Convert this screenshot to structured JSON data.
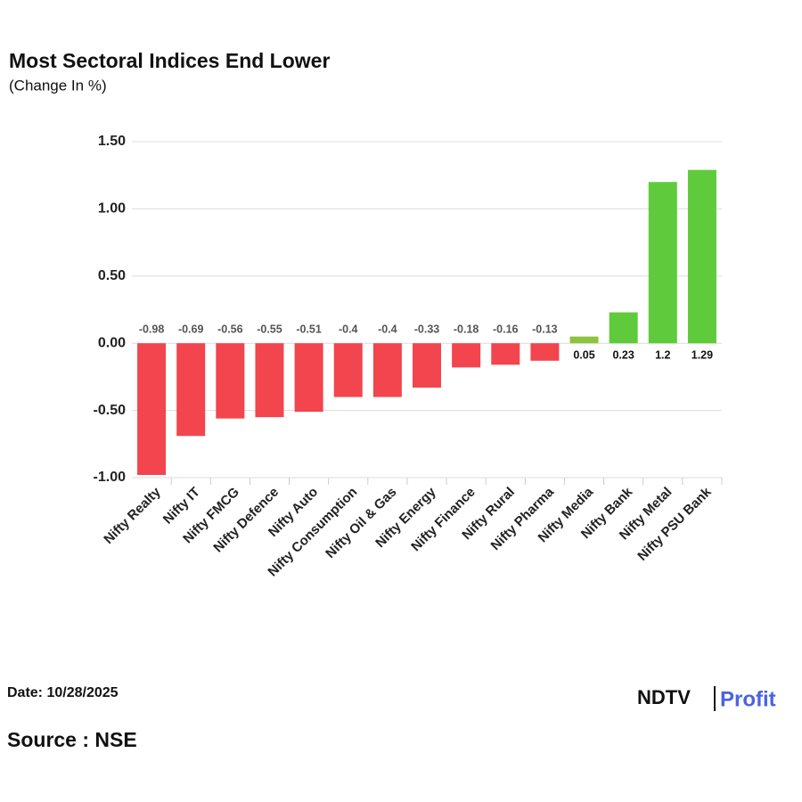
{
  "chart_data": {
    "type": "bar",
    "title": "Most Sectoral Indices End Lower",
    "subtitle": "(Change In %)",
    "categories": [
      "Nifty Realty",
      "Nifty IT",
      "Nifty FMCG",
      "Nifty Defence",
      "Nifty Auto",
      "Nifty Consumption",
      "Nifty Oil & Gas",
      "Nifty Energy",
      "Nifty Finance",
      "Nifty Rural",
      "Nifty Pharma",
      "Nifty Media",
      "Nifty Bank",
      "Nifty Metal",
      "Nifty PSU Bank"
    ],
    "values": [
      -0.98,
      -0.69,
      -0.56,
      -0.55,
      -0.51,
      -0.4,
      -0.4,
      -0.33,
      -0.18,
      -0.16,
      -0.13,
      0.05,
      0.23,
      1.2,
      1.29
    ],
    "colors": [
      "#f2454d",
      "#f2454d",
      "#f2454d",
      "#f2454d",
      "#f2454d",
      "#f2454d",
      "#f2454d",
      "#f2454d",
      "#f2454d",
      "#f2454d",
      "#f2454d",
      "#8cc43f",
      "#5fcb3c",
      "#5fcb3c",
      "#5fcb3c"
    ],
    "ylim": [
      -1,
      1.5
    ],
    "yticks": [
      {
        "value": -1,
        "label": "-1.00"
      },
      {
        "value": -0.5,
        "label": "-0.50"
      },
      {
        "value": 0,
        "label": "0.00"
      },
      {
        "value": 0.5,
        "label": "0.50"
      },
      {
        "value": 1,
        "label": "1.00"
      },
      {
        "value": 1.5,
        "label": "1.50"
      }
    ],
    "grid": true,
    "date": "Date: 10/28/2025",
    "source": "Source : NSE",
    "logo": [
      "NDTV",
      "Profit"
    ]
  }
}
